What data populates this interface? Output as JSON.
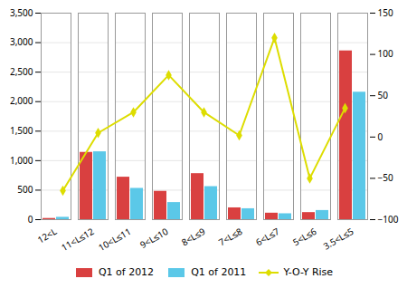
{
  "chart_data": {
    "type": "bar",
    "categories": [
      "12<L",
      "11<L≤12",
      "10<L≤11",
      "9<L≤10",
      "8<L≤9",
      "7<L≤8",
      "6<L≤7",
      "5<L≤6",
      "3.5<L≤5"
    ],
    "series": [
      {
        "name": "Q1 of 2012",
        "color": "#d94040",
        "values": [
          20,
          1140,
          720,
          480,
          780,
          200,
          110,
          120,
          2860
        ]
      },
      {
        "name": "Q1 of 2011",
        "color": "#5bc8e8",
        "values": [
          40,
          1150,
          530,
          290,
          560,
          185,
          100,
          155,
          2160
        ]
      },
      {
        "name": "Y-O-Y Rise",
        "type": "line",
        "axis": "y2",
        "color": "#dddd00",
        "marker": "diamond",
        "line_style": "solid",
        "values": [
          -65,
          5,
          30,
          75,
          30,
          2,
          120,
          -50,
          35
        ]
      }
    ],
    "ylim": [
      0,
      3500
    ],
    "yticks": [
      0,
      500,
      1000,
      1500,
      2000,
      2500,
      3000,
      3500
    ],
    "y2lim": [
      -100,
      150
    ],
    "y2ticks": [
      -100,
      -50,
      0,
      50,
      100,
      150
    ],
    "grid": true,
    "legend": "bottom"
  }
}
